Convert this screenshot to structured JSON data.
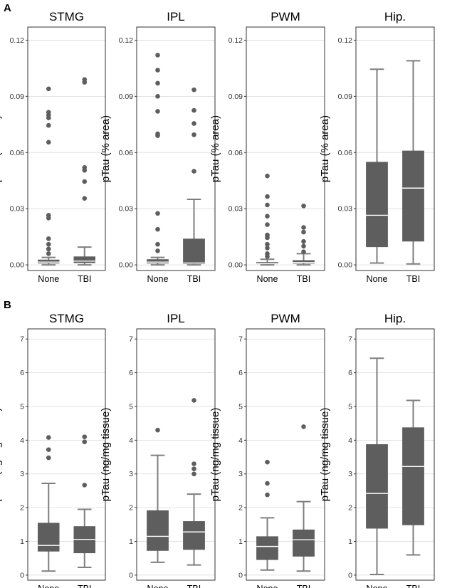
{
  "panels": [
    {
      "letter": "A",
      "ylabel": "pTau (% area)"
    },
    {
      "letter": "B",
      "ylabel": "pTau (ng/mg tissue)"
    }
  ],
  "colors": {
    "box": "#5e5e5e",
    "median": "#ffffff",
    "whisker": "#7f7f7f",
    "grid": "#d9d9d9",
    "frame": "#333333",
    "text": "#000000"
  },
  "chart_data": [
    {
      "type": "box",
      "panel": "A",
      "title": "STMG",
      "ylabel": "pTau (% area)",
      "categories": [
        "None",
        "TBI"
      ],
      "ylim": [
        -0.003,
        0.127
      ],
      "yticks": [
        0.0,
        0.03,
        0.06,
        0.09,
        0.12
      ],
      "yticklabels": [
        "0.00",
        "0.03",
        "0.06",
        "0.09",
        "0.12"
      ],
      "grid": true,
      "boxes": [
        {
          "category": "None",
          "whisker_low": 0.0,
          "q1": 0.0008,
          "median": 0.0015,
          "q3": 0.0028,
          "whisker_high": 0.004,
          "outliers": [
            0.094,
            0.0815,
            0.08,
            0.0785,
            0.0745,
            0.0655,
            0.0265,
            0.025,
            0.014,
            0.011,
            0.0085,
            0.006
          ]
        },
        {
          "category": "TBI",
          "whisker_low": 0.0,
          "q1": 0.001,
          "median": 0.002,
          "q3": 0.0045,
          "whisker_high": 0.0095,
          "outliers": [
            0.099,
            0.0975,
            0.052,
            0.0505,
            0.0445,
            0.0355
          ]
        }
      ]
    },
    {
      "type": "box",
      "panel": "A",
      "title": "IPL",
      "ylabel": "pTau (% area)",
      "categories": [
        "None",
        "TBI"
      ],
      "ylim": [
        -0.003,
        0.127
      ],
      "yticks": [
        0.0,
        0.03,
        0.06,
        0.09,
        0.12
      ],
      "yticklabels": [
        "0.00",
        "0.03",
        "0.06",
        "0.09",
        "0.12"
      ],
      "grid": true,
      "boxes": [
        {
          "category": "None",
          "whisker_low": 0.0,
          "q1": 0.0008,
          "median": 0.0015,
          "q3": 0.003,
          "whisker_high": 0.004,
          "outliers": [
            0.112,
            0.104,
            0.097,
            0.09,
            0.082,
            0.07,
            0.069,
            0.0275,
            0.019,
            0.011,
            0.0075
          ]
        },
        {
          "category": "TBI",
          "whisker_low": 0.0,
          "q1": 0.0005,
          "median": 0.001,
          "q3": 0.014,
          "whisker_high": 0.035,
          "outliers": [
            0.0935,
            0.0825,
            0.0755,
            0.0695,
            0.05
          ]
        }
      ]
    },
    {
      "type": "box",
      "panel": "A",
      "title": "PWM",
      "ylabel": "pTau (% area)",
      "categories": [
        "None",
        "TBI"
      ],
      "ylim": [
        -0.003,
        0.127
      ],
      "yticks": [
        0.0,
        0.03,
        0.06,
        0.09,
        0.12
      ],
      "yticklabels": [
        "0.00",
        "0.03",
        "0.06",
        "0.09",
        "0.12"
      ],
      "grid": true,
      "boxes": [
        {
          "category": "None",
          "whisker_low": 0.0,
          "q1": 0.0004,
          "median": 0.0007,
          "q3": 0.0015,
          "whisker_high": 0.003,
          "outliers": [
            0.0475,
            0.0365,
            0.032,
            0.026,
            0.0215,
            0.016,
            0.0155,
            0.0145,
            0.011,
            0.009,
            0.006,
            0.0045
          ]
        },
        {
          "category": "TBI",
          "whisker_low": 0.0,
          "q1": 0.0007,
          "median": 0.0013,
          "q3": 0.0025,
          "whisker_high": 0.006,
          "outliers": [
            0.0315,
            0.02,
            0.0175,
            0.0125,
            0.01,
            0.007
          ]
        }
      ]
    },
    {
      "type": "box",
      "panel": "A",
      "title": "Hip.",
      "ylabel": "pTau (% area)",
      "categories": [
        "None",
        "TBI"
      ],
      "ylim": [
        -0.003,
        0.127
      ],
      "yticks": [
        0.0,
        0.03,
        0.06,
        0.09,
        0.12
      ],
      "yticklabels": [
        "0.00",
        "0.03",
        "0.06",
        "0.09",
        "0.12"
      ],
      "grid": true,
      "boxes": [
        {
          "category": "None",
          "whisker_low": 0.001,
          "q1": 0.0095,
          "median": 0.0265,
          "q3": 0.055,
          "whisker_high": 0.1045,
          "outliers": []
        },
        {
          "category": "TBI",
          "whisker_low": 0.0005,
          "q1": 0.0125,
          "median": 0.041,
          "q3": 0.061,
          "whisker_high": 0.109,
          "outliers": []
        }
      ]
    },
    {
      "type": "box",
      "panel": "B",
      "title": "STMG",
      "ylabel": "pTau (ng/mg tissue)",
      "categories": [
        "None",
        "TBI"
      ],
      "ylim": [
        -0.15,
        7.3
      ],
      "yticks": [
        0,
        1,
        2,
        3,
        4,
        5,
        6,
        7
      ],
      "yticklabels": [
        "0",
        "1",
        "2",
        "3",
        "4",
        "5",
        "6",
        "7"
      ],
      "grid": true,
      "boxes": [
        {
          "category": "None",
          "whisker_low": 0.12,
          "q1": 0.7,
          "median": 0.88,
          "q3": 1.55,
          "whisker_high": 2.72,
          "outliers": [
            4.08,
            3.72,
            3.48
          ]
        },
        {
          "category": "TBI",
          "whisker_low": 0.23,
          "q1": 0.65,
          "median": 1.06,
          "q3": 1.45,
          "whisker_high": 1.95,
          "outliers": [
            4.1,
            3.95,
            2.67
          ]
        }
      ]
    },
    {
      "type": "box",
      "panel": "B",
      "title": "IPL",
      "ylabel": "pTau (ng/mg tissue)",
      "categories": [
        "None",
        "TBI"
      ],
      "ylim": [
        -0.15,
        7.3
      ],
      "yticks": [
        0,
        1,
        2,
        3,
        4,
        5,
        6,
        7
      ],
      "yticklabels": [
        "0",
        "1",
        "2",
        "3",
        "4",
        "5",
        "6",
        "7"
      ],
      "grid": true,
      "boxes": [
        {
          "category": "None",
          "whisker_low": 0.38,
          "q1": 0.72,
          "median": 1.15,
          "q3": 1.92,
          "whisker_high": 3.55,
          "outliers": [
            4.3
          ]
        },
        {
          "category": "TBI",
          "whisker_low": 0.3,
          "q1": 0.75,
          "median": 1.28,
          "q3": 1.6,
          "whisker_high": 2.4,
          "outliers": [
            5.18,
            3.3,
            3.15,
            3.0
          ]
        }
      ]
    },
    {
      "type": "box",
      "panel": "B",
      "title": "PWM",
      "ylabel": "pTau (ng/mg tissue)",
      "categories": [
        "None",
        "TBI"
      ],
      "ylim": [
        -0.15,
        7.3
      ],
      "yticks": [
        0,
        1,
        2,
        3,
        4,
        5,
        6,
        7
      ],
      "yticklabels": [
        "0",
        "1",
        "2",
        "3",
        "4",
        "5",
        "6",
        "7"
      ],
      "grid": true,
      "boxes": [
        {
          "category": "None",
          "whisker_low": 0.15,
          "q1": 0.45,
          "median": 0.85,
          "q3": 1.15,
          "whisker_high": 1.7,
          "outliers": [
            3.35,
            2.72,
            2.38
          ]
        },
        {
          "category": "TBI",
          "whisker_low": 0.12,
          "q1": 0.55,
          "median": 1.05,
          "q3": 1.35,
          "whisker_high": 2.18,
          "outliers": [
            4.4
          ]
        }
      ]
    },
    {
      "type": "box",
      "panel": "B",
      "title": "Hip.",
      "ylabel": "pTau (ng/mg tissue)",
      "categories": [
        "None",
        "TBI"
      ],
      "ylim": [
        -0.15,
        7.3
      ],
      "yticks": [
        0,
        1,
        2,
        3,
        4,
        5,
        6,
        7
      ],
      "yticklabels": [
        "0",
        "1",
        "2",
        "3",
        "4",
        "5",
        "6",
        "7"
      ],
      "grid": true,
      "boxes": [
        {
          "category": "None",
          "whisker_low": 0.02,
          "q1": 1.38,
          "median": 2.42,
          "q3": 3.88,
          "whisker_high": 6.43,
          "outliers": []
        },
        {
          "category": "TBI",
          "whisker_low": 0.6,
          "q1": 1.48,
          "median": 3.22,
          "q3": 4.38,
          "whisker_high": 5.18,
          "outliers": []
        }
      ]
    }
  ]
}
